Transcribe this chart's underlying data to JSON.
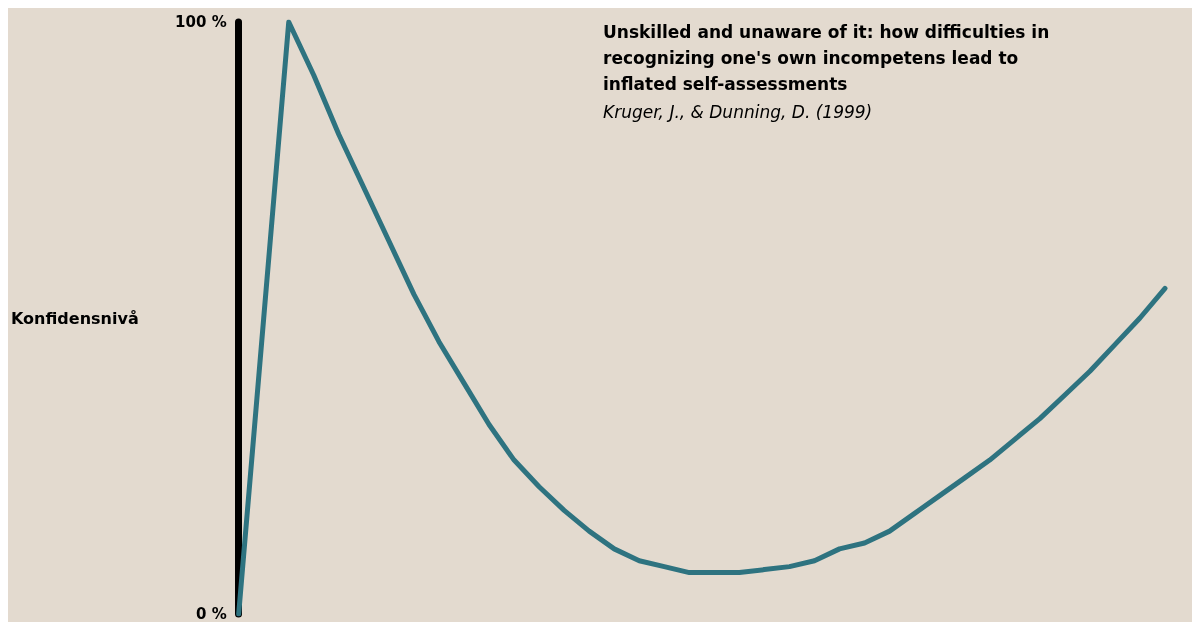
{
  "chart_data": {
    "type": "line",
    "title": "Unskilled and unaware of it: how difficulties in recognizing one's own incompetens lead to inflated self-assessments",
    "subtitle": "Kruger, J., & Dunning, D. (1999)",
    "ylabel": "Konfidensnivå",
    "categories": [
      null,
      null,
      null,
      null,
      null,
      null,
      null,
      null,
      null,
      null,
      null,
      null,
      null,
      null,
      null,
      null,
      null,
      null,
      null,
      null,
      null,
      null,
      null,
      null,
      null,
      null,
      null,
      null,
      null,
      null,
      null,
      null,
      null,
      null,
      null,
      null,
      null,
      null
    ],
    "series": [
      {
        "color": "#2e7380",
        "values": [
          0,
          50,
          100,
          91,
          81,
          72,
          63,
          54,
          46,
          39,
          32,
          26,
          21.5,
          17.5,
          14,
          11,
          9,
          8,
          7,
          7,
          7,
          7.5,
          8,
          9,
          11,
          12,
          14,
          17,
          20,
          23,
          26,
          29.5,
          33,
          37,
          41,
          45.5,
          50,
          55
        ]
      }
    ],
    "ylim": [
      0,
      100
    ],
    "yticks": [
      {
        "value": 0,
        "label": "0 %"
      },
      {
        "value": 100,
        "label": "100 %"
      }
    ],
    "tick_labels": "y",
    "grid": false,
    "marker": "none",
    "line_style": "solid"
  }
}
